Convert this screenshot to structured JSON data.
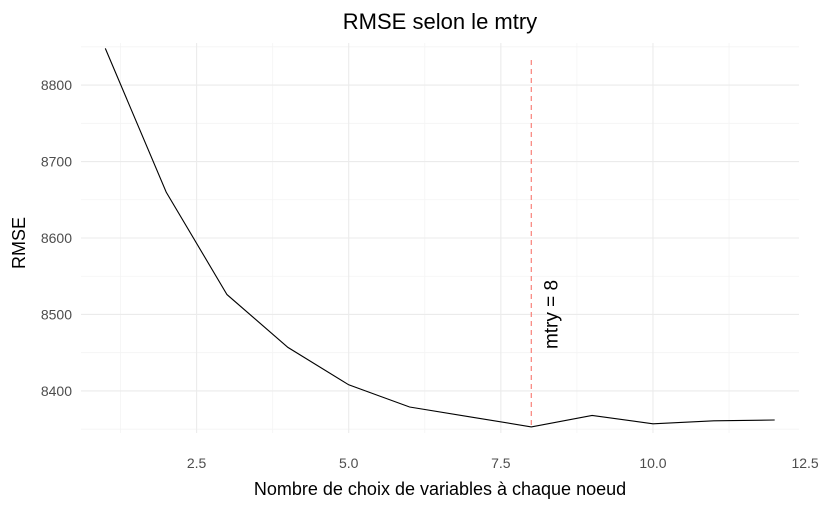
{
  "chart_data": {
    "type": "line",
    "title": "RMSE selon le mtry",
    "xlabel": "Nombre de choix de variables à chaque noeud",
    "ylabel": "RMSE",
    "xlim": [
      0.6,
      12.4
    ],
    "ylim": [
      8345,
      8855
    ],
    "x_ticks": [
      2.5,
      5.0,
      7.5,
      10.0,
      12.5
    ],
    "x_tick_labels": [
      "2.5",
      "5.0",
      "7.5",
      "10.0",
      "12.5"
    ],
    "y_ticks": [
      8400,
      8500,
      8600,
      8700,
      8800
    ],
    "y_tick_labels": [
      "8400",
      "8500",
      "8600",
      "8700",
      "8800"
    ],
    "grid": true,
    "series": [
      {
        "x": [
          1,
          2,
          3,
          4,
          5,
          6,
          7,
          8,
          9,
          10,
          11,
          12
        ],
        "y": [
          8848,
          8660,
          8526,
          8457,
          8408,
          8379,
          8366,
          8353,
          8368,
          8357,
          8361,
          8362
        ],
        "color": "#000000"
      }
    ],
    "annotations": [
      {
        "type": "vline",
        "x": 8,
        "color": "#f8766d",
        "style": "dashed"
      },
      {
        "type": "text",
        "text": "mtry = 8",
        "x": 8,
        "y": 8500,
        "rotation": -90
      }
    ]
  }
}
